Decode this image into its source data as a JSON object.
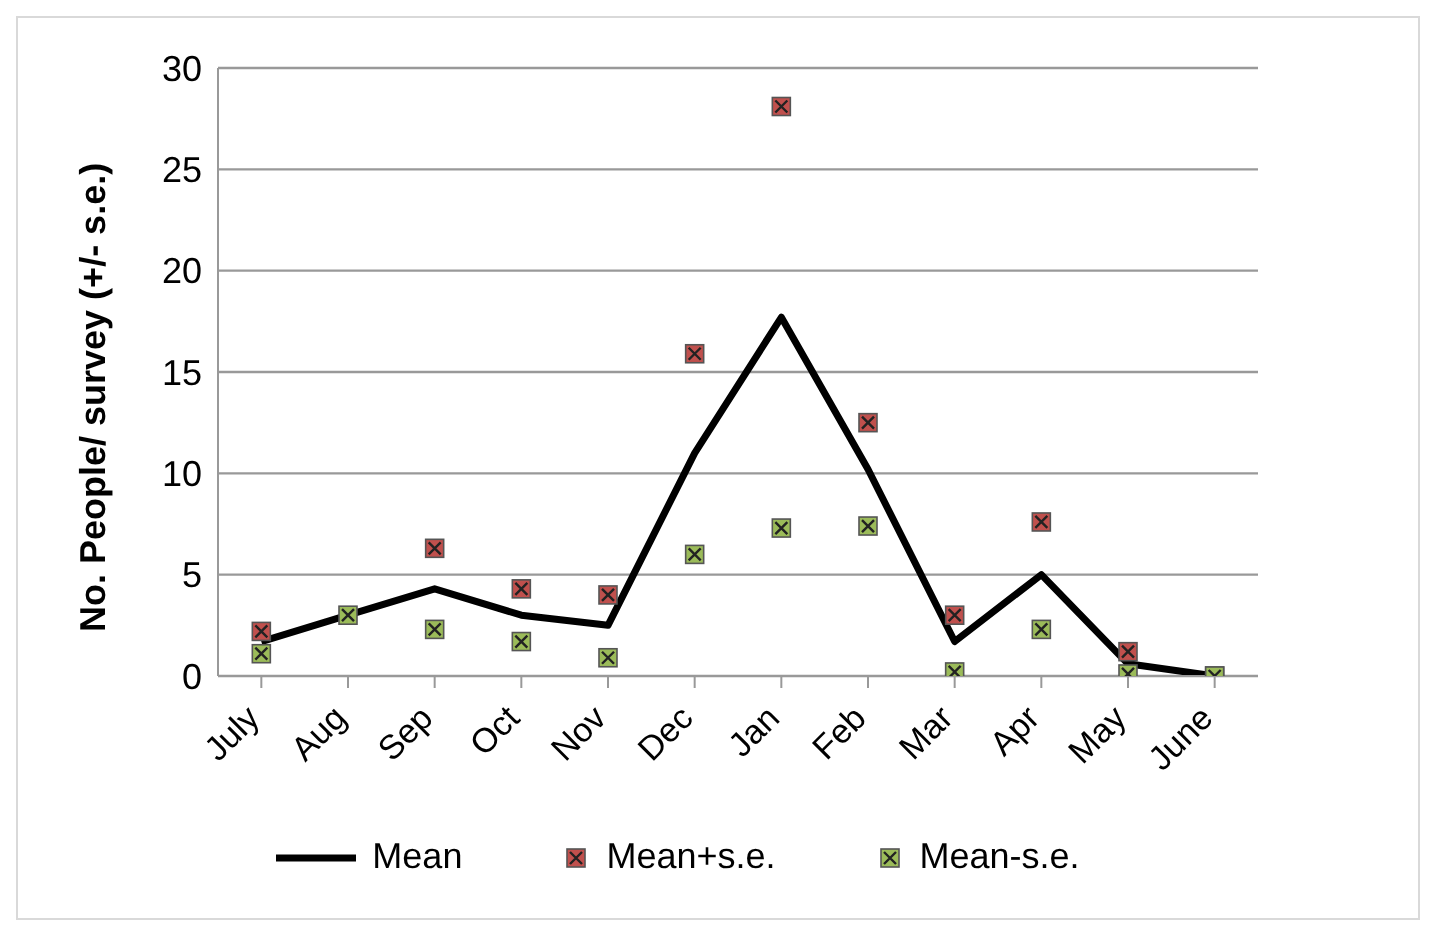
{
  "chart_data": {
    "type": "line",
    "ylabel": "No. People/ survey (+/- s.e.)",
    "categories": [
      "July",
      "Aug",
      "Sep",
      "Oct",
      "Nov",
      "Dec",
      "Jan",
      "Feb",
      "Mar",
      "Apr",
      "May",
      "June"
    ],
    "series": [
      {
        "name": "Mean",
        "color": "#000000",
        "marker": "none",
        "values": [
          1.7,
          3.0,
          4.3,
          3.0,
          2.5,
          11.0,
          17.7,
          10.2,
          1.7,
          5.0,
          0.6,
          0
        ]
      },
      {
        "name": "Mean+s.e.",
        "type": "scatter",
        "color": "#c0504d",
        "marker": "square",
        "values": [
          2.2,
          null,
          6.3,
          4.3,
          4.0,
          15.9,
          28.1,
          12.5,
          3.0,
          7.6,
          1.2,
          0
        ]
      },
      {
        "name": "Mean-s.e.",
        "type": "scatter",
        "color": "#9bbb59",
        "marker": "square",
        "values": [
          1.1,
          3.0,
          2.3,
          1.7,
          0.9,
          6.0,
          7.3,
          7.4,
          0.2,
          2.3,
          0.1,
          0
        ]
      }
    ],
    "ylim": [
      0,
      30
    ],
    "yticks": [
      0,
      5,
      10,
      15,
      20,
      25,
      30
    ],
    "grid": "y",
    "legend": "bottom"
  }
}
